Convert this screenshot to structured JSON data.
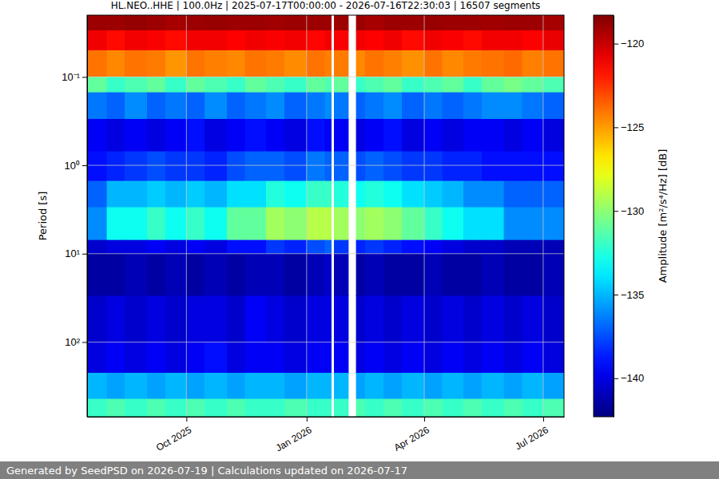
{
  "chart_data": {
    "type": "heatmap",
    "title": "HL.NEO..HHE | 100.0Hz | 2025-07-17T00:00:00 - 2026-07-16T22:30:03 | 16507 segments",
    "y_label": "Period [s]",
    "colorbar_label": "Amplitude [m²/s⁴/Hz] [dB]",
    "log": "y",
    "grid": true,
    "xlim": [
      "2025-07-17T00:00:00",
      "2026-07-16T22:30:03"
    ],
    "xticks": [
      {
        "value": "2025-10-01",
        "label": "Oct 2025"
      },
      {
        "value": "2026-01-01",
        "label": "Jan 2026"
      },
      {
        "value": "2026-04-01",
        "label": "Apr 2026"
      },
      {
        "value": "2026-07-01",
        "label": "Jul 2026"
      }
    ],
    "ylim": [
      0.02,
      700
    ],
    "yticks": [
      {
        "value": 0.1,
        "label": "10⁻¹"
      },
      {
        "value": 1,
        "label": "10⁰"
      },
      {
        "value": 10,
        "label": "10¹"
      },
      {
        "value": 100,
        "label": "10²"
      }
    ],
    "zlim": [
      -142.3,
      -118.3
    ],
    "zticks": [
      {
        "value": -120,
        "label": "−120"
      },
      {
        "value": -125,
        "label": "−125"
      },
      {
        "value": -130,
        "label": "−130"
      },
      {
        "value": -135,
        "label": "−135"
      },
      {
        "value": -140,
        "label": "−140"
      }
    ],
    "x": [
      "2025-07-17T00:00:00",
      "2025-08-01",
      "2025-08-15",
      "2025-09-01",
      "2025-09-15",
      "2025-10-01",
      "2025-10-15",
      "2025-11-01",
      "2025-11-15",
      "2025-12-01",
      "2025-12-15",
      "2026-01-01",
      "2026-01-15",
      "2026-01-20",
      "2026-01-22",
      "2026-02-02",
      "2026-02-08",
      "2026-02-15",
      "2026-03-01",
      "2026-03-15",
      "2026-04-01",
      "2026-04-15",
      "2026-05-01",
      "2026-05-15",
      "2026-06-01",
      "2026-06-15",
      "2026-07-01",
      "2026-07-16T22:30:03"
    ],
    "y": [
      0.02,
      0.03,
      0.05,
      0.1,
      0.15,
      0.3,
      0.7,
      1.5,
      3,
      7,
      10,
      30,
      100,
      225,
      440,
      700
    ],
    "z": [
      [
        -119,
        -119,
        -118.8,
        -119,
        -119.2,
        -119,
        -118.9,
        -119,
        -119,
        -119.1,
        -119,
        -119,
        -119,
        null,
        -119,
        null,
        -119,
        -119.2,
        -119,
        -119,
        -118.9,
        -119,
        -119,
        -119.1,
        -119,
        -119,
        -119.2
      ],
      [
        -121,
        -121.5,
        -121,
        -121.2,
        -121.5,
        -121,
        -121,
        -121.3,
        -121,
        -121.2,
        -121,
        -121.4,
        -121,
        null,
        -121.2,
        null,
        -121,
        -121.3,
        -121,
        -121.5,
        -121,
        -121.2,
        -121.5,
        -121,
        -121,
        -121.3,
        -120.8
      ],
      [
        -124,
        -124.5,
        -124,
        -124.2,
        -124.8,
        -124,
        -124.3,
        -124.5,
        -124,
        -124.2,
        -124.6,
        -124,
        -124.3,
        null,
        -124.2,
        null,
        -124.5,
        -124,
        -124.3,
        -124.7,
        -124,
        -124.5,
        -124.2,
        -124,
        -123.8,
        -124.3,
        -124
      ],
      [
        -131,
        -132,
        -131.5,
        -131,
        -132,
        -131,
        -131.5,
        -132,
        -131,
        -131.5,
        -132,
        -131,
        -131.5,
        null,
        -131,
        null,
        -132,
        -131.5,
        -131,
        -132,
        -131.5,
        -131,
        -132,
        -131,
        -130.5,
        -131,
        -131.5
      ],
      [
        -136.5,
        -137,
        -136,
        -137,
        -136.5,
        -137,
        -136,
        -137,
        -136.5,
        -136,
        -137,
        -136.5,
        -136,
        null,
        -136.5,
        null,
        -137,
        -136.5,
        -136,
        -137,
        -136.5,
        -137,
        -136.5,
        -136,
        -136,
        -136.5,
        -137
      ],
      [
        -139.5,
        -140,
        -139.5,
        -140,
        -139.5,
        -139,
        -140,
        -139.5,
        -139,
        -139.5,
        -140,
        -139,
        -139.5,
        null,
        -139.5,
        null,
        -140,
        -139.5,
        -139,
        -140,
        -139.5,
        -140,
        -139.5,
        -139.5,
        -140,
        -139.5,
        -140
      ],
      [
        -139,
        -138.5,
        -138,
        -137.5,
        -138,
        -138,
        -138.5,
        -137.5,
        -137,
        -137,
        -137.5,
        -136.5,
        -137,
        null,
        -137,
        null,
        -137.5,
        -137,
        -137.5,
        -138,
        -138,
        -138.5,
        -138.5,
        -139,
        -139,
        -139,
        -139
      ],
      [
        -137,
        -135,
        -135,
        -134.5,
        -135,
        -134.5,
        -135,
        -134,
        -134,
        -132.5,
        -133,
        -132,
        -132,
        null,
        -132.5,
        null,
        -133,
        -132.5,
        -133,
        -134,
        -134.5,
        -135,
        -136,
        -136,
        -137,
        -137,
        -137
      ],
      [
        -136,
        -133,
        -133,
        -132,
        -133,
        -132,
        -133,
        -131,
        -131,
        -129.5,
        -130,
        -129,
        -129,
        null,
        -129.5,
        null,
        -130,
        -129.5,
        -130,
        -131,
        -132,
        -133,
        -134,
        -134,
        -136,
        -136,
        -136
      ],
      [
        -140.5,
        -140,
        -140,
        -139.5,
        -140,
        -139.5,
        -140,
        -139,
        -139,
        -138,
        -138.5,
        -137.5,
        -137,
        null,
        -138,
        null,
        -138.5,
        -138,
        -138.5,
        -139,
        -139.5,
        -140,
        -140.5,
        -140.5,
        -141,
        -141,
        -141
      ],
      [
        -141.5,
        -141.5,
        -141,
        -141.5,
        -141,
        -141.5,
        -141,
        -141.5,
        -141,
        -141,
        -141.5,
        -141,
        -140.5,
        null,
        -141,
        null,
        -141.5,
        -141,
        -141.5,
        -141.5,
        -141,
        -141.5,
        -141.5,
        -141,
        -141.5,
        -141.5,
        -141
      ],
      [
        -140.5,
        -140,
        -140.5,
        -140,
        -140.5,
        -140,
        -140,
        -140.5,
        -139.5,
        -140,
        -140.5,
        -140,
        -140,
        null,
        -140,
        null,
        -140.5,
        -140,
        -140.5,
        -140,
        -140.5,
        -140,
        -140.5,
        -140,
        -140.5,
        -140,
        -140.5
      ],
      [
        -140,
        -139.5,
        -140,
        -139.5,
        -140,
        -139.5,
        -139,
        -140,
        -139.5,
        -139.5,
        -140,
        -139.5,
        -139.5,
        null,
        -139.5,
        null,
        -140,
        -139.5,
        -140,
        -139.5,
        -140,
        -139.5,
        -140,
        -139.5,
        -140,
        -139.5,
        -140
      ],
      [
        -135,
        -135.5,
        -135,
        -135.5,
        -135,
        -135.5,
        -135,
        -135.5,
        -135,
        -135,
        -135.5,
        -135,
        -135,
        null,
        -135,
        null,
        -135.5,
        -135,
        -135.5,
        -135,
        -135.5,
        -135,
        -135.5,
        -135,
        -135.5,
        -135,
        -135.5
      ],
      [
        -132,
        -131.5,
        -132,
        -131.5,
        -132,
        -131.5,
        -132,
        -131.5,
        -132,
        -132,
        -131.5,
        -132,
        -132,
        null,
        -132,
        null,
        -131.5,
        -132,
        -131.5,
        -132,
        -131.5,
        -132,
        -131.5,
        -132,
        -131.5,
        -132,
        -131.5
      ]
    ]
  },
  "footer": "Generated by SeedPSD on 2026-07-19 | Calculations updated on 2026-07-17"
}
